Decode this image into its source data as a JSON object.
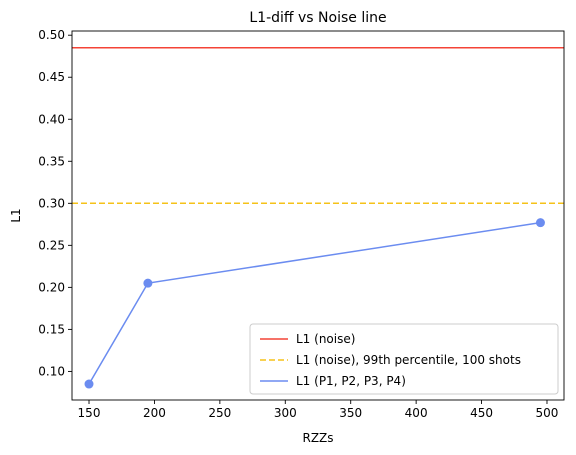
{
  "chart_data": {
    "type": "line",
    "title": "L1-diff vs Noise line",
    "xlabel": "RZZs",
    "ylabel": "L1",
    "xlim": [
      137,
      513
    ],
    "ylim": [
      0.066,
      0.505
    ],
    "xticks": [
      150,
      200,
      250,
      300,
      350,
      400,
      450,
      500
    ],
    "yticks": [
      0.1,
      0.15,
      0.2,
      0.25,
      0.3,
      0.35,
      0.4,
      0.45,
      0.5
    ],
    "grid": false,
    "legend_position": "lower-right",
    "series": [
      {
        "name": "L1 (noise)",
        "kind": "hline",
        "y": 0.485,
        "color": "#f44336",
        "dash": "solid"
      },
      {
        "name": "L1 (noise), 99th percentile, 100 shots",
        "kind": "hline",
        "y": 0.3,
        "color": "#f5c218",
        "dash": "dashed"
      },
      {
        "name": "L1 (P1, P2, P3, P4)",
        "kind": "line",
        "color": "#6b8cf0",
        "marker": "circle",
        "x": [
          150,
          195,
          495
        ],
        "y": [
          0.085,
          0.205,
          0.277
        ]
      }
    ]
  }
}
